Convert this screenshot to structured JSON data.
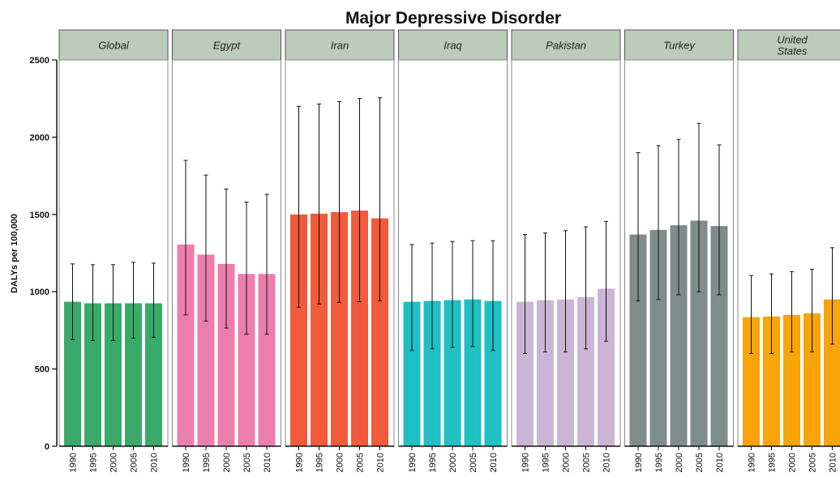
{
  "chart_data": {
    "type": "bar",
    "title": "Major Depressive Disorder",
    "ylabel": "DALYs per 100,000",
    "xlabel": "",
    "ylim": [
      0,
      2500
    ],
    "yticks": [
      0,
      500,
      1000,
      1500,
      2000,
      2500
    ],
    "categories": [
      "1990",
      "1995",
      "2000",
      "2005",
      "2010"
    ],
    "grid": false,
    "legend": "none",
    "panels": [
      {
        "name": "Global",
        "color": "#3aaa6a",
        "values": [
          935,
          925,
          925,
          925,
          925
        ],
        "lower": [
          690,
          685,
          685,
          700,
          705
        ],
        "upper": [
          1180,
          1175,
          1175,
          1190,
          1185
        ]
      },
      {
        "name": "Egypt",
        "color": "#ec7eab",
        "values": [
          1305,
          1240,
          1180,
          1115,
          1115
        ],
        "lower": [
          850,
          810,
          765,
          725,
          725
        ],
        "upper": [
          1850,
          1755,
          1665,
          1580,
          1630
        ]
      },
      {
        "name": "Iran",
        "color": "#f15a3a",
        "values": [
          1500,
          1505,
          1515,
          1525,
          1475
        ],
        "lower": [
          900,
          920,
          930,
          935,
          940
        ],
        "upper": [
          2200,
          2215,
          2230,
          2250,
          2255
        ]
      },
      {
        "name": "Iraq",
        "color": "#1fbfc3",
        "values": [
          935,
          940,
          945,
          950,
          940
        ],
        "lower": [
          620,
          630,
          640,
          645,
          620
        ],
        "upper": [
          1305,
          1315,
          1325,
          1330,
          1330
        ]
      },
      {
        "name": "Pakistan",
        "color": "#cbb5d4",
        "values": [
          935,
          945,
          950,
          965,
          1020
        ],
        "lower": [
          600,
          610,
          610,
          630,
          680
        ],
        "upper": [
          1370,
          1380,
          1395,
          1420,
          1455
        ]
      },
      {
        "name": "Turkey",
        "color": "#7e8c8a",
        "values": [
          1370,
          1400,
          1430,
          1460,
          1425
        ],
        "lower": [
          940,
          950,
          980,
          1000,
          980
        ],
        "upper": [
          1900,
          1945,
          1985,
          2090,
          1950
        ]
      },
      {
        "name": "United States",
        "label_lines": [
          "United",
          "States"
        ],
        "color": "#f8a40a",
        "values": [
          835,
          840,
          850,
          860,
          950
        ],
        "lower": [
          600,
          600,
          610,
          610,
          660
        ],
        "upper": [
          1105,
          1115,
          1130,
          1145,
          1285
        ]
      }
    ]
  }
}
